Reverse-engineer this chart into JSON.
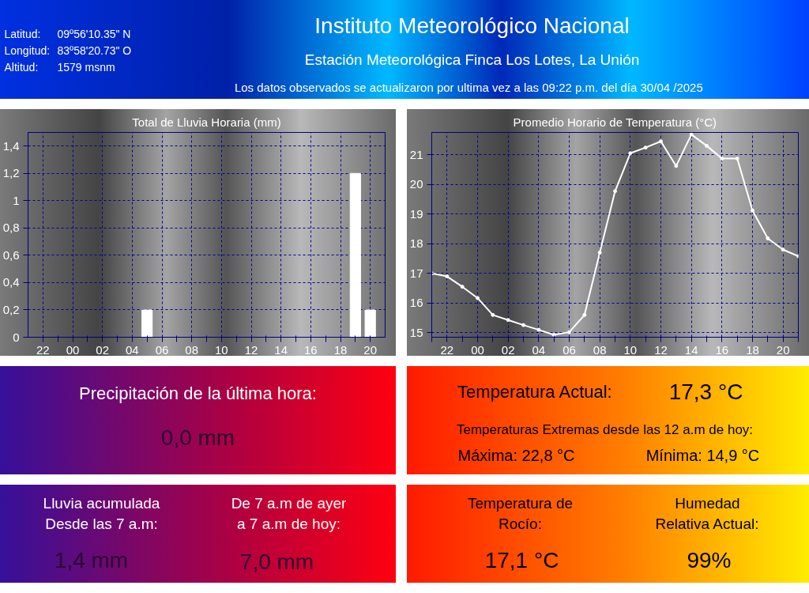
{
  "chart_data": [
    {
      "type": "other",
      "title": "Instituto Meteorológico Nacional",
      "subtitle": "Estación Meteorológica Finca Los Lotes, La Unión",
      "annotations": [
        "Latitud:",
        "09º56'10.35\" N",
        "Longitud:",
        "83º58'20.73\" O",
        "Altitud:",
        "1579 msnm",
        "Los datos observados se actualizaron por ultima vez a las  09:22 p.m. del día  30/04 /2025"
      ]
    },
    {
      "type": "bar",
      "title": "Total de Lluvia Horaria (mm)",
      "color": "#ffffff",
      "grid": true,
      "categories": [
        "22",
        null,
        "00",
        null,
        "02",
        null,
        "04",
        null,
        "06",
        null,
        "08",
        null,
        "10",
        null,
        "12",
        null,
        "14",
        null,
        "16",
        null,
        "18",
        null,
        "20"
      ],
      "values": [
        0,
        0,
        0,
        0,
        0,
        0,
        0,
        0.2,
        0,
        0,
        0,
        0,
        0,
        0,
        0,
        0,
        0,
        0,
        0,
        0,
        0,
        1.2,
        0.2
      ],
      "ylim": [
        0,
        1.5
      ],
      "yticks": [
        0,
        {
          "value": 0.2,
          "label": "0,2"
        },
        {
          "value": 0.4,
          "label": "0,4"
        },
        {
          "value": 0.6,
          "label": "0,6"
        },
        {
          "value": 0.8,
          "label": "0,8"
        },
        1,
        {
          "value": 1.2,
          "label": "1,2"
        },
        {
          "value": 1.4,
          "label": "1,4"
        }
      ]
    },
    {
      "type": "line",
      "title": "Promedio Horario de Temperatura (°C)",
      "color": "#ffffff",
      "grid": true,
      "marker": "circle",
      "line_style": "solid",
      "categories": [
        null,
        "22",
        null,
        "00",
        null,
        "02",
        null,
        "04",
        null,
        "06",
        null,
        "08",
        null,
        "10",
        null,
        "12",
        null,
        "14",
        null,
        "16",
        null,
        "18",
        null,
        "20",
        null
      ],
      "values": [
        17.0,
        16.9,
        16.55,
        16.17,
        15.6,
        15.43,
        15.26,
        15.1,
        14.93,
        15.02,
        15.6,
        17.7,
        19.77,
        21.05,
        21.24,
        21.45,
        20.62,
        21.68,
        21.3,
        20.87,
        20.87,
        19.12,
        18.18,
        17.8,
        17.58
      ],
      "ylim": [
        14.85,
        21.75
      ],
      "yticks": [
        15,
        16,
        17,
        18,
        19,
        20,
        21
      ]
    },
    {
      "type": "other",
      "annotations": [
        "Precipitación de la última hora:",
        "0,0 mm"
      ]
    },
    {
      "type": "other",
      "annotations": [
        "Temperatura Actual:",
        "17,3 °C",
        "Temperaturas Extremas desde las 12 a.m de hoy:",
        "Máxima: 22,8 °C",
        "Mínima: 14,9 °C"
      ]
    },
    {
      "type": "other",
      "annotations": [
        "Lluvia acumulada\nDesde las 7 a.m:",
        "De 7 a.m de ayer\na 7 a.m de hoy:",
        "1,4 mm",
        "7,0 mm"
      ]
    },
    {
      "type": "other",
      "annotations": [
        "Temperatura de\nRocío:",
        "Humedad\nRelativa Actual:",
        "17,1 °C",
        "99%"
      ]
    }
  ]
}
